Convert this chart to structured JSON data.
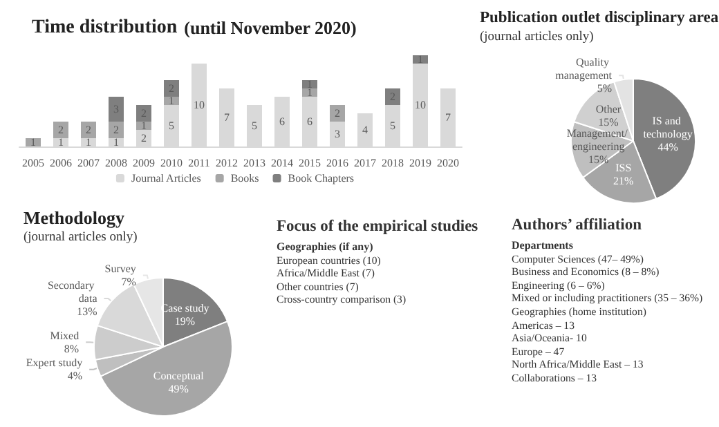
{
  "chart_data": [
    {
      "type": "bar",
      "title": "Time distribution",
      "subtitle": "(until November 2020)",
      "categories": [
        "2005",
        "2006",
        "2007",
        "2008",
        "2009",
        "2010",
        "2011",
        "2012",
        "2013",
        "2014",
        "2015",
        "2016",
        "2017",
        "2018",
        "2019",
        "2020"
      ],
      "stacked": true,
      "data_labels": true,
      "legend": "bottom",
      "series": [
        {
          "name": "Journal Articles",
          "color": "#d9d9d9",
          "values": [
            null,
            1,
            1,
            1,
            2,
            5,
            10,
            7,
            5,
            6,
            6,
            3,
            4,
            5,
            10,
            7
          ]
        },
        {
          "name": "Books",
          "color": "#a6a6a6",
          "values": [
            1,
            2,
            2,
            2,
            1,
            1,
            null,
            null,
            null,
            null,
            1,
            2,
            null,
            null,
            null,
            null
          ]
        },
        {
          "name": "Book Chapters",
          "color": "#7f7f7f",
          "values": [
            null,
            null,
            null,
            3,
            2,
            2,
            null,
            null,
            null,
            null,
            1,
            null,
            null,
            2,
            1,
            null
          ]
        }
      ]
    },
    {
      "type": "pie",
      "title": "Publication outlet disciplinary area",
      "subtitle": "(journal articles only)",
      "categories": [
        "IS and technology",
        "ISS",
        "Management/ engineering",
        "Other",
        "Quality management"
      ],
      "values": [
        44,
        21,
        15,
        15,
        5
      ],
      "value_labels": [
        "44%",
        "21%",
        "15%",
        "15%",
        "5%"
      ],
      "colors": [
        "#7f7f7f",
        "#a6a6a6",
        "#bfbfbf",
        "#d0d0d0",
        "#e3e3e3"
      ]
    },
    {
      "type": "pie",
      "title": "Methodology",
      "subtitle": "(journal articles only)",
      "categories": [
        "Case study",
        "Conceptual",
        "Expert study",
        "Mixed",
        "Secondary data",
        "Survey"
      ],
      "values": [
        19,
        49,
        4,
        8,
        13,
        7
      ],
      "value_labels": [
        "19%",
        "49%",
        "4%",
        "8%",
        "13%",
        "7%"
      ],
      "colors": [
        "#7f7f7f",
        "#a6a6a6",
        "#bfbfbf",
        "#cccccc",
        "#d9d9d9",
        "#e6e6e6"
      ]
    },
    {
      "type": "other",
      "title": "Focus of the empirical studies",
      "subtitle": "Geographies (if any)",
      "annotations": [
        "European countries (10)",
        "Africa/Middle East (7)",
        "Other countries (7)",
        "Cross-country comparison (3)"
      ]
    },
    {
      "type": "other",
      "title": "Authors’ affiliation",
      "subtitle": "Departments",
      "annotations": [
        "Computer Sciences (47– 49%)",
        "Business and Economics (8 – 8%)",
        "Engineering (6 – 6%)",
        "Mixed or including practitioners (35 – 36%)",
        "Geographies (home institution)",
        "Americas – 13",
        "Asia/Oceania- 10",
        "Europe – 47",
        "North Africa/Middle East – 13",
        "Collaborations – 13"
      ]
    }
  ]
}
